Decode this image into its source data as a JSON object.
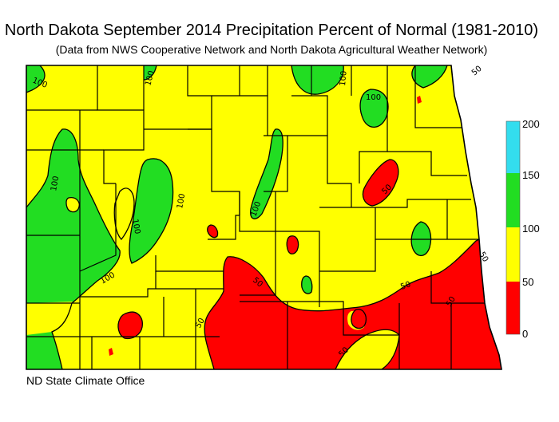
{
  "title": "North Dakota September 2014 Precipitation Percent of Normal (1981-2010)",
  "subtitle": "(Data from NWS Cooperative Network and North Dakota Agricultural Weather Network)",
  "footer": "ND State Climate Office",
  "legend": {
    "items": [
      {
        "range": "150-200",
        "color": "#33ddee"
      },
      {
        "range": "100-150",
        "color": "#22dd22"
      },
      {
        "range": "50-100",
        "color": "#ffff00"
      },
      {
        "range": "0-50",
        "color": "#ff0000"
      }
    ],
    "ticks": [
      "200",
      "150",
      "100",
      "50",
      "0"
    ]
  },
  "contour_labels": [
    "100",
    "100",
    "100",
    "50",
    "100",
    "100",
    "100",
    "100",
    "100",
    "100",
    "50",
    "50",
    "50",
    "50",
    "50",
    "50",
    "50"
  ]
}
